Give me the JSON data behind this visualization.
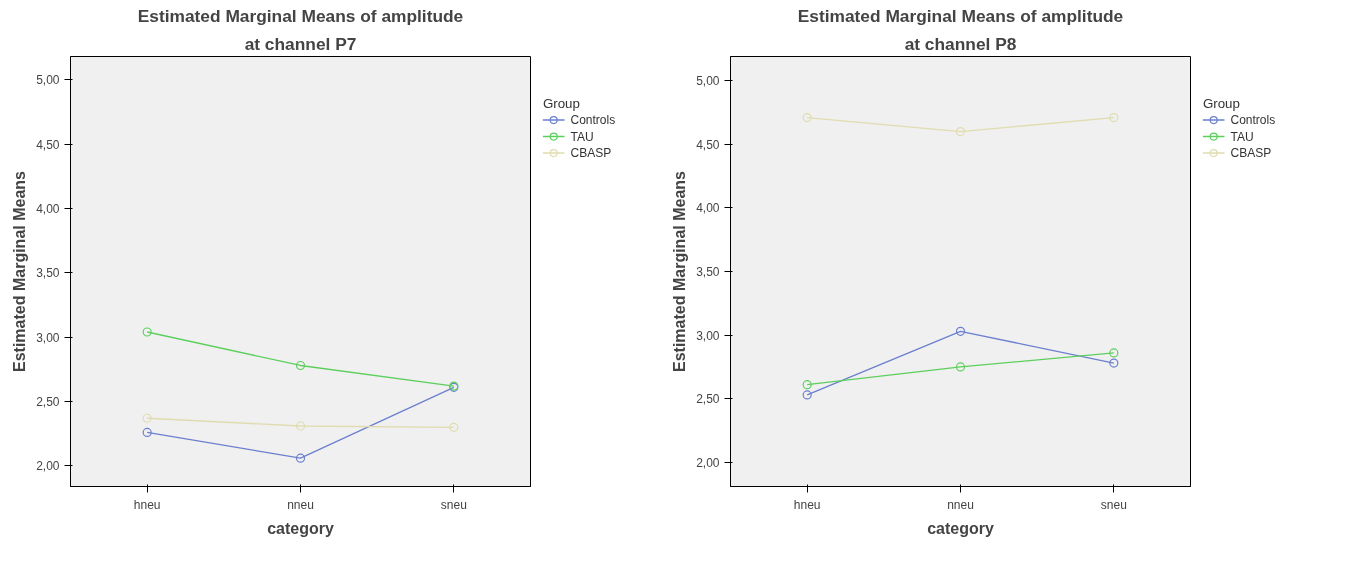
{
  "chart_data": [
    {
      "type": "line",
      "title": "Estimated Marginal Means of amplitude",
      "subtitle": "at channel P7",
      "xlabel": "category",
      "ylabel": "Estimated Marginal Means",
      "legend_title": "Group",
      "categories": [
        "hneu",
        "nneu",
        "sneu"
      ],
      "series": [
        {
          "name": "Controls",
          "color": "#6b7fcf",
          "values": [
            2.26,
            2.06,
            2.61
          ]
        },
        {
          "name": "TAU",
          "color": "#5dcf5d",
          "values": [
            3.04,
            2.78,
            2.62
          ]
        },
        {
          "name": "CBASP",
          "color": "#e0dcb0",
          "values": [
            2.37,
            2.31,
            2.3
          ]
        }
      ],
      "ylim": [
        1.84,
        5.18
      ],
      "yticks": [
        {
          "value": 2,
          "label": "2,00"
        },
        {
          "value": 2.5,
          "label": "2,50"
        },
        {
          "value": 3,
          "label": "3,00"
        },
        {
          "value": 3.5,
          "label": "3,50"
        },
        {
          "value": 4,
          "label": "4,00"
        },
        {
          "value": 4.5,
          "label": "4,50"
        },
        {
          "value": 5,
          "label": "5,00"
        }
      ],
      "grid": false,
      "legend": "right",
      "marker": "circle",
      "line_style": "solid"
    },
    {
      "type": "line",
      "title": "Estimated Marginal Means of amplitude",
      "subtitle": "at channel P8",
      "xlabel": "category",
      "ylabel": "Estimated Marginal Means",
      "legend_title": "Group",
      "categories": [
        "hneu",
        "nneu",
        "sneu"
      ],
      "series": [
        {
          "name": "Controls",
          "color": "#6b7fcf",
          "values": [
            2.53,
            3.03,
            2.78
          ]
        },
        {
          "name": "TAU",
          "color": "#5dcf5d",
          "values": [
            2.61,
            2.75,
            2.86
          ]
        },
        {
          "name": "CBASP",
          "color": "#e0dcb0",
          "values": [
            4.71,
            4.6,
            4.71
          ]
        }
      ],
      "ylim": [
        1.81,
        5.19
      ],
      "yticks": [
        {
          "value": 2,
          "label": "2,00"
        },
        {
          "value": 2.5,
          "label": "2,50"
        },
        {
          "value": 3,
          "label": "3,00"
        },
        {
          "value": 3.5,
          "label": "3,50"
        },
        {
          "value": 4,
          "label": "4,00"
        },
        {
          "value": 4.5,
          "label": "4,50"
        },
        {
          "value": 5,
          "label": "5,00"
        }
      ],
      "grid": false,
      "legend": "right",
      "marker": "circle",
      "line_style": "solid"
    }
  ]
}
